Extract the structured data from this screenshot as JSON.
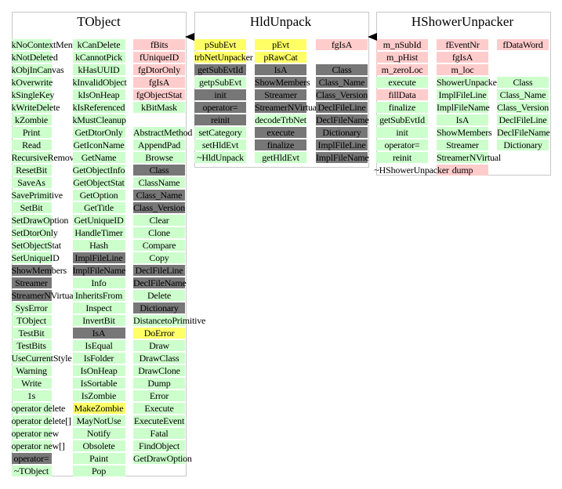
{
  "colors": {
    "green": "#ccffcc",
    "pink": "#ffcccc",
    "yellow": "#ffff66",
    "gray": "#777777"
  },
  "classes": [
    {
      "title": "TObject",
      "columns": [
        [
          {
            "text": "kNoContextMenu",
            "color": "green"
          },
          {
            "text": "kNotDeleted",
            "color": "green"
          },
          {
            "text": "kObjInCanvas",
            "color": "green"
          },
          {
            "text": "kOverwrite",
            "color": "green"
          },
          {
            "text": "kSingleKey",
            "color": "green"
          },
          {
            "text": "kWriteDelete",
            "color": "green"
          },
          {
            "text": "kZombie",
            "color": "green"
          },
          {
            "text": "Print",
            "color": "green"
          },
          {
            "text": "Read",
            "color": "green"
          },
          {
            "text": "RecursiveRemove",
            "color": "green"
          },
          {
            "text": "ResetBit",
            "color": "green"
          },
          {
            "text": "SaveAs",
            "color": "green"
          },
          {
            "text": "SavePrimitive",
            "color": "green"
          },
          {
            "text": "SetBit",
            "color": "green"
          },
          {
            "text": "SetDrawOption",
            "color": "green"
          },
          {
            "text": "SetDtorOnly",
            "color": "green"
          },
          {
            "text": "SetObjectStat",
            "color": "green"
          },
          {
            "text": "SetUniqueID",
            "color": "green"
          },
          {
            "text": "ShowMembers",
            "color": "gray"
          },
          {
            "text": "Streamer",
            "color": "gray"
          },
          {
            "text": "StreamerNVirtual",
            "color": "gray"
          },
          {
            "text": "SysError",
            "color": "green"
          },
          {
            "text": "TObject",
            "color": "green"
          },
          {
            "text": "TestBit",
            "color": "green"
          },
          {
            "text": "TestBits",
            "color": "green"
          },
          {
            "text": "UseCurrentStyle",
            "color": "green"
          },
          {
            "text": "Warning",
            "color": "green"
          },
          {
            "text": "Write",
            "color": "green"
          },
          {
            "text": "1s",
            "color": "green"
          },
          {
            "text": "operator delete",
            "color": "green"
          },
          {
            "text": "operator delete[]",
            "color": "green"
          },
          {
            "text": "operator new",
            "color": "green"
          },
          {
            "text": "operator new[]",
            "color": "green"
          },
          {
            "text": "operator=",
            "color": "gray"
          },
          {
            "text": "~TObject",
            "color": "green"
          }
        ],
        [
          {
            "text": "kCanDelete",
            "color": "green"
          },
          {
            "text": "kCannotPick",
            "color": "green"
          },
          {
            "text": "kHasUUID",
            "color": "green"
          },
          {
            "text": "kInvalidObject",
            "color": "green"
          },
          {
            "text": "kIsOnHeap",
            "color": "green"
          },
          {
            "text": "kIsReferenced",
            "color": "green"
          },
          {
            "text": "kMustCleanup",
            "color": "green"
          },
          {
            "text": "GetDtorOnly",
            "color": "green"
          },
          {
            "text": "GetIconName",
            "color": "green"
          },
          {
            "text": "GetName",
            "color": "green"
          },
          {
            "text": "GetObjectInfo",
            "color": "green"
          },
          {
            "text": "GetObjectStat",
            "color": "green"
          },
          {
            "text": "GetOption",
            "color": "green"
          },
          {
            "text": "GetTitle",
            "color": "green"
          },
          {
            "text": "GetUniqueID",
            "color": "green"
          },
          {
            "text": "HandleTimer",
            "color": "green"
          },
          {
            "text": "Hash",
            "color": "green"
          },
          {
            "text": "ImplFileLine",
            "color": "gray"
          },
          {
            "text": "ImplFileName",
            "color": "gray"
          },
          {
            "text": "Info",
            "color": "green"
          },
          {
            "text": "InheritsFrom",
            "color": "green"
          },
          {
            "text": "Inspect",
            "color": "green"
          },
          {
            "text": "InvertBit",
            "color": "green"
          },
          {
            "text": "IsA",
            "color": "gray"
          },
          {
            "text": "IsEqual",
            "color": "green"
          },
          {
            "text": "IsFolder",
            "color": "green"
          },
          {
            "text": "IsOnHeap",
            "color": "green"
          },
          {
            "text": "IsSortable",
            "color": "green"
          },
          {
            "text": "IsZombie",
            "color": "green"
          },
          {
            "text": "MakeZombie",
            "color": "yellow"
          },
          {
            "text": "MayNotUse",
            "color": "green"
          },
          {
            "text": "Notify",
            "color": "green"
          },
          {
            "text": "Obsolete",
            "color": "green"
          },
          {
            "text": "Paint",
            "color": "green"
          },
          {
            "text": "Pop",
            "color": "green"
          }
        ],
        [
          {
            "text": "fBits",
            "color": "pink"
          },
          {
            "text": "fUniqueID",
            "color": "pink"
          },
          {
            "text": "fgDtorOnly",
            "color": "pink"
          },
          {
            "text": "fgIsA",
            "color": "pink"
          },
          {
            "text": "fgObjectStat",
            "color": "pink"
          },
          {
            "text": "kBitMask",
            "color": "green"
          },
          {
            "text": "",
            "color": "none"
          },
          {
            "text": "AbstractMethod",
            "color": "green"
          },
          {
            "text": "AppendPad",
            "color": "green"
          },
          {
            "text": "Browse",
            "color": "green"
          },
          {
            "text": "Class",
            "color": "gray"
          },
          {
            "text": "ClassName",
            "color": "green"
          },
          {
            "text": "Class_Name",
            "color": "gray"
          },
          {
            "text": "Class_Version",
            "color": "gray"
          },
          {
            "text": "Clear",
            "color": "green"
          },
          {
            "text": "Clone",
            "color": "green"
          },
          {
            "text": "Compare",
            "color": "green"
          },
          {
            "text": "Copy",
            "color": "green"
          },
          {
            "text": "DeclFileLine",
            "color": "gray"
          },
          {
            "text": "DeclFileName",
            "color": "gray"
          },
          {
            "text": "Delete",
            "color": "green"
          },
          {
            "text": "Dictionary",
            "color": "gray"
          },
          {
            "text": "DistancetoPrimitive",
            "color": "green"
          },
          {
            "text": "DoError",
            "color": "yellow"
          },
          {
            "text": "Draw",
            "color": "green"
          },
          {
            "text": "DrawClass",
            "color": "green"
          },
          {
            "text": "DrawClone",
            "color": "green"
          },
          {
            "text": "Dump",
            "color": "green"
          },
          {
            "text": "Error",
            "color": "green"
          },
          {
            "text": "Execute",
            "color": "green"
          },
          {
            "text": "ExecuteEvent",
            "color": "green"
          },
          {
            "text": "Fatal",
            "color": "green"
          },
          {
            "text": "FindObject",
            "color": "green"
          },
          {
            "text": "GetDrawOption",
            "color": "green"
          }
        ]
      ]
    },
    {
      "title": "HldUnpack",
      "columns": [
        [
          {
            "text": "pSubEvt",
            "color": "yellow"
          },
          {
            "text": "trbNetUnpacker",
            "color": "yellow"
          },
          {
            "text": "getSubEvtId",
            "color": "gray"
          },
          {
            "text": "getpSubEvt",
            "color": "green"
          },
          {
            "text": "init",
            "color": "gray"
          },
          {
            "text": "operator=",
            "color": "gray"
          },
          {
            "text": "reinit",
            "color": "gray"
          },
          {
            "text": "setCategory",
            "color": "green"
          },
          {
            "text": "setHldEvt",
            "color": "green"
          },
          {
            "text": "~HldUnpack",
            "color": "green"
          }
        ],
        [
          {
            "text": "pEvt",
            "color": "yellow"
          },
          {
            "text": "pRawCat",
            "color": "yellow"
          },
          {
            "text": "IsA",
            "color": "gray"
          },
          {
            "text": "ShowMembers",
            "color": "gray"
          },
          {
            "text": "Streamer",
            "color": "gray"
          },
          {
            "text": "StreamerNVirtual",
            "color": "gray"
          },
          {
            "text": "decodeTrbNet",
            "color": "green"
          },
          {
            "text": "execute",
            "color": "gray"
          },
          {
            "text": "finalize",
            "color": "gray"
          },
          {
            "text": "getHldEvt",
            "color": "green"
          }
        ],
        [
          {
            "text": "fgIsA",
            "color": "pink"
          },
          {
            "text": "",
            "color": "none"
          },
          {
            "text": "Class",
            "color": "gray"
          },
          {
            "text": "Class_Name",
            "color": "gray"
          },
          {
            "text": "Class_Version",
            "color": "gray"
          },
          {
            "text": "DeclFileLine",
            "color": "gray"
          },
          {
            "text": "DeclFileName",
            "color": "gray"
          },
          {
            "text": "Dictionary",
            "color": "gray"
          },
          {
            "text": "ImplFileLine",
            "color": "gray"
          },
          {
            "text": "ImplFileName",
            "color": "gray"
          }
        ]
      ]
    },
    {
      "title": "HShowerUnpacker",
      "columns": [
        [
          {
            "text": "m_nSubId",
            "color": "pink"
          },
          {
            "text": "m_pHist",
            "color": "pink"
          },
          {
            "text": "m_zeroLoc",
            "color": "pink"
          },
          {
            "text": "execute",
            "color": "green"
          },
          {
            "text": "fillData",
            "color": "pink"
          },
          {
            "text": "finalize",
            "color": "green"
          },
          {
            "text": "getSubEvtId",
            "color": "green"
          },
          {
            "text": "init",
            "color": "green"
          },
          {
            "text": "operator=",
            "color": "green"
          },
          {
            "text": "reinit",
            "color": "green"
          }
        ],
        [
          {
            "text": "fEventNr",
            "color": "pink"
          },
          {
            "text": "fgIsA",
            "color": "pink"
          },
          {
            "text": "m_loc",
            "color": "pink"
          },
          {
            "text": "ShowerUnpacker",
            "color": "green"
          },
          {
            "text": "ImplFileLine",
            "color": "green"
          },
          {
            "text": "ImplFileName",
            "color": "green"
          },
          {
            "text": "IsA",
            "color": "green"
          },
          {
            "text": "ShowMembers",
            "color": "green"
          },
          {
            "text": "Streamer",
            "color": "green"
          },
          {
            "text": "StreamerNVirtual",
            "color": "green"
          },
          {
            "text": "dump",
            "color": "pink"
          }
        ],
        [
          {
            "text": "fDataWord",
            "color": "pink"
          },
          {
            "text": "",
            "color": "none"
          },
          {
            "text": "",
            "color": "none"
          },
          {
            "text": "Class",
            "color": "green"
          },
          {
            "text": "Class_Name",
            "color": "green"
          },
          {
            "text": "Class_Version",
            "color": "green"
          },
          {
            "text": "DeclFileLine",
            "color": "green"
          },
          {
            "text": "DeclFileName",
            "color": "green"
          },
          {
            "text": "Dictionary",
            "color": "green"
          }
        ]
      ],
      "destructor": "~HShowerUnpacker"
    }
  ]
}
